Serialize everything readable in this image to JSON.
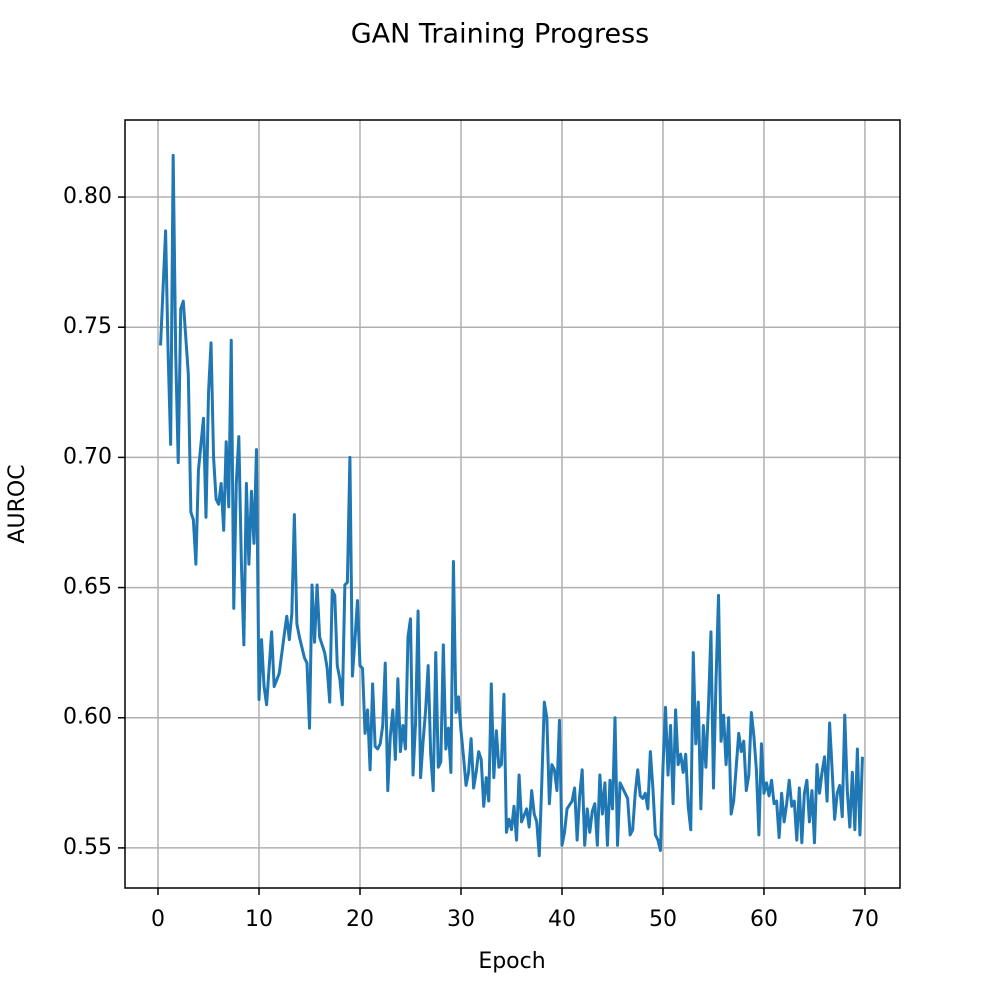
{
  "chart_data": {
    "type": "line",
    "title": "GAN Training Progress",
    "xlabel": "Epoch",
    "ylabel": "AUROC",
    "xlim": [
      -3.27,
      73.47
    ],
    "ylim": [
      0.5346,
      0.8296
    ],
    "xticks": [
      0,
      10,
      20,
      30,
      40,
      50,
      60,
      70
    ],
    "yticks": [
      0.55,
      {
        "value": 0.6,
        "label": "0.60"
      },
      0.65,
      {
        "value": 0.7,
        "label": "0.70"
      },
      0.75,
      {
        "value": 0.8,
        "label": "0.80"
      }
    ],
    "grid": true,
    "series": [
      {
        "color": "#1f77b4",
        "x": [
          0.25,
          0.75,
          1.0,
          1.25,
          1.5,
          1.75,
          2.0,
          2.25,
          2.5,
          3.0,
          3.25,
          3.5,
          3.75,
          4.0,
          4.5,
          4.75,
          5.0,
          5.25,
          5.5,
          5.75,
          6.0,
          6.25,
          6.5,
          6.75,
          7.0,
          7.25,
          7.5,
          7.75,
          8.0,
          8.25,
          8.5,
          8.75,
          9.0,
          9.25,
          9.5,
          9.75,
          10.0,
          10.25,
          10.5,
          10.75,
          11.0,
          11.25,
          11.5,
          12.0,
          12.5,
          12.75,
          13.0,
          13.25,
          13.5,
          13.75,
          14.0,
          14.5,
          14.75,
          15.0,
          15.25,
          15.5,
          15.75,
          16.0,
          16.5,
          16.75,
          17.0,
          17.25,
          17.5,
          17.75,
          18.0,
          18.25,
          18.5,
          18.75,
          19.0,
          19.25,
          19.5,
          19.75,
          20.0,
          20.25,
          20.5,
          20.75,
          21.0,
          21.25,
          21.5,
          21.75,
          22.0,
          22.25,
          22.5,
          22.75,
          23.0,
          23.25,
          23.5,
          23.75,
          24.0,
          24.25,
          24.5,
          24.75,
          25.0,
          25.25,
          25.5,
          25.75,
          26.0,
          26.25,
          26.5,
          26.75,
          27.0,
          27.25,
          27.5,
          27.75,
          28.0,
          28.25,
          28.5,
          28.75,
          29.0,
          29.25,
          29.5,
          29.75,
          30.0,
          30.25,
          30.5,
          30.75,
          31.0,
          31.25,
          31.5,
          31.75,
          32.0,
          32.25,
          32.5,
          32.75,
          33.0,
          33.25,
          33.5,
          33.75,
          34.0,
          34.25,
          34.5,
          34.75,
          35.0,
          35.25,
          35.5,
          35.75,
          36.0,
          36.5,
          36.75,
          37.0,
          37.25,
          37.5,
          37.75,
          38.0,
          38.25,
          38.5,
          38.75,
          39.0,
          39.25,
          39.5,
          39.75,
          40.0,
          40.25,
          40.5,
          41.0,
          41.25,
          41.5,
          41.75,
          42.0,
          42.25,
          42.5,
          42.75,
          43.0,
          43.25,
          43.5,
          43.75,
          44.0,
          44.25,
          44.5,
          44.75,
          45.0,
          45.25,
          45.5,
          45.75,
          46.0,
          46.5,
          46.75,
          47.0,
          47.25,
          47.5,
          47.75,
          48.0,
          48.25,
          48.5,
          48.75,
          49.0,
          49.25,
          49.5,
          49.75,
          50.0,
          50.25,
          50.5,
          50.75,
          51.0,
          51.25,
          51.5,
          51.75,
          52.0,
          52.25,
          52.5,
          52.75,
          53.0,
          53.25,
          53.5,
          53.75,
          54.0,
          54.25,
          54.5,
          54.75,
          55.0,
          55.25,
          55.5,
          55.75,
          56.0,
          56.25,
          56.5,
          56.75,
          57.0,
          57.5,
          57.75,
          58.0,
          58.25,
          58.5,
          58.75,
          59.0,
          59.25,
          59.5,
          59.75,
          60.0,
          60.25,
          60.5,
          60.75,
          61.0,
          61.25,
          61.5,
          61.75,
          62.0,
          62.25,
          62.5,
          62.75,
          63.0,
          63.25,
          63.5,
          63.75,
          64.0,
          64.25,
          64.5,
          64.75,
          65.0,
          65.25,
          65.5,
          65.75,
          66.0,
          66.25,
          66.5,
          66.75,
          67.0,
          67.25,
          67.5,
          67.75,
          68.0,
          68.25,
          68.5,
          68.75,
          69.0,
          69.25,
          69.5,
          69.75
        ],
        "values": [
          0.743,
          0.787,
          0.74,
          0.705,
          0.816,
          0.74,
          0.698,
          0.757,
          0.76,
          0.732,
          0.679,
          0.676,
          0.659,
          0.695,
          0.715,
          0.677,
          0.725,
          0.744,
          0.7,
          0.684,
          0.682,
          0.69,
          0.672,
          0.706,
          0.681,
          0.745,
          0.642,
          0.69,
          0.708,
          0.66,
          0.628,
          0.69,
          0.659,
          0.687,
          0.667,
          0.703,
          0.607,
          0.63,
          0.612,
          0.605,
          0.619,
          0.633,
          0.612,
          0.617,
          0.632,
          0.639,
          0.63,
          0.64,
          0.678,
          0.636,
          0.631,
          0.623,
          0.621,
          0.596,
          0.651,
          0.629,
          0.651,
          0.631,
          0.625,
          0.619,
          0.606,
          0.649,
          0.647,
          0.62,
          0.615,
          0.605,
          0.651,
          0.652,
          0.7,
          0.616,
          0.63,
          0.645,
          0.62,
          0.619,
          0.594,
          0.603,
          0.58,
          0.613,
          0.589,
          0.588,
          0.59,
          0.597,
          0.621,
          0.572,
          0.593,
          0.603,
          0.584,
          0.615,
          0.587,
          0.597,
          0.588,
          0.631,
          0.638,
          0.578,
          0.598,
          0.641,
          0.577,
          0.591,
          0.603,
          0.62,
          0.586,
          0.572,
          0.625,
          0.581,
          0.583,
          0.628,
          0.588,
          0.596,
          0.579,
          0.66,
          0.602,
          0.608,
          0.595,
          0.585,
          0.574,
          0.579,
          0.592,
          0.573,
          0.579,
          0.587,
          0.584,
          0.566,
          0.577,
          0.568,
          0.613,
          0.577,
          0.595,
          0.581,
          0.582,
          0.609,
          0.556,
          0.561,
          0.557,
          0.566,
          0.553,
          0.578,
          0.56,
          0.565,
          0.558,
          0.572,
          0.563,
          0.56,
          0.547,
          0.575,
          0.606,
          0.6,
          0.567,
          0.582,
          0.58,
          0.572,
          0.599,
          0.551,
          0.556,
          0.565,
          0.568,
          0.573,
          0.553,
          0.57,
          0.58,
          0.551,
          0.565,
          0.556,
          0.564,
          0.567,
          0.551,
          0.578,
          0.563,
          0.575,
          0.551,
          0.576,
          0.565,
          0.6,
          0.551,
          0.575,
          0.573,
          0.569,
          0.555,
          0.557,
          0.571,
          0.58,
          0.57,
          0.569,
          0.571,
          0.565,
          0.587,
          0.573,
          0.555,
          0.553,
          0.549,
          0.581,
          0.604,
          0.578,
          0.597,
          0.567,
          0.603,
          0.582,
          0.586,
          0.579,
          0.586,
          0.566,
          0.557,
          0.625,
          0.59,
          0.606,
          0.565,
          0.597,
          0.581,
          0.604,
          0.633,
          0.573,
          0.614,
          0.647,
          0.591,
          0.601,
          0.582,
          0.6,
          0.563,
          0.568,
          0.594,
          0.587,
          0.591,
          0.572,
          0.578,
          0.602,
          0.593,
          0.58,
          0.555,
          0.59,
          0.571,
          0.575,
          0.57,
          0.576,
          0.567,
          0.568,
          0.554,
          0.571,
          0.56,
          0.567,
          0.576,
          0.566,
          0.568,
          0.553,
          0.573,
          0.552,
          0.571,
          0.576,
          0.56,
          0.572,
          0.552,
          0.582,
          0.571,
          0.579,
          0.585,
          0.568,
          0.598,
          0.58,
          0.561,
          0.571,
          0.574,
          0.562,
          0.601,
          0.572,
          0.558,
          0.579,
          0.557,
          0.588,
          0.555,
          0.585
        ]
      }
    ]
  }
}
